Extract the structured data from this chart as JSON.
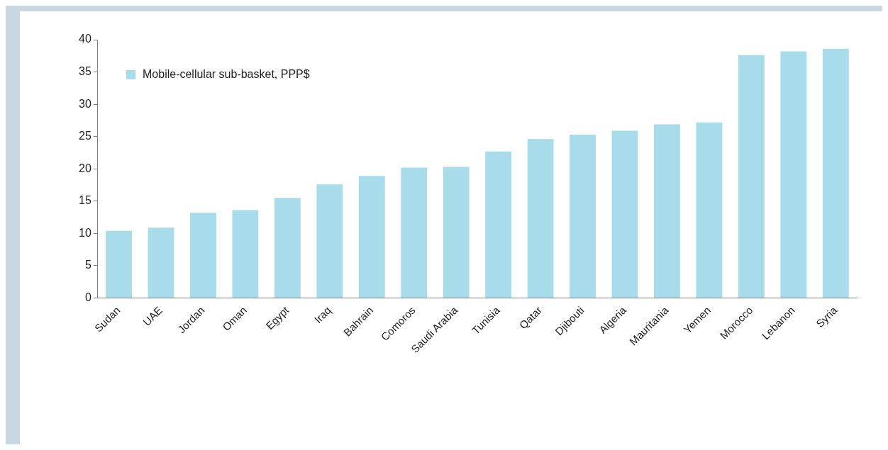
{
  "chart_data": {
    "type": "bar",
    "categories": [
      "Sudan",
      "UAE",
      "Jordan",
      "Oman",
      "Egypt",
      "Iraq",
      "Bahrain",
      "Comoros",
      "Saudi Arabia",
      "Tunisia",
      "Qatar",
      "Djibouti",
      "Algeria",
      "Mauritania",
      "Yemen",
      "Morocco",
      "Lebanon",
      "Syria"
    ],
    "series": [
      {
        "name": "Mobile-cellular sub-basket, PPP$",
        "color": "#a8dcea",
        "values": [
          10.4,
          10.9,
          13.2,
          13.6,
          15.5,
          17.6,
          18.9,
          20.2,
          20.3,
          22.7,
          24.6,
          25.3,
          25.9,
          26.9,
          27.2,
          37.6,
          38.2,
          38.6
        ]
      }
    ],
    "ylim": [
      0,
      40
    ],
    "yticks": [
      0,
      5,
      10,
      15,
      20,
      25,
      30,
      35,
      40
    ],
    "grid": false,
    "legend": "top left"
  }
}
